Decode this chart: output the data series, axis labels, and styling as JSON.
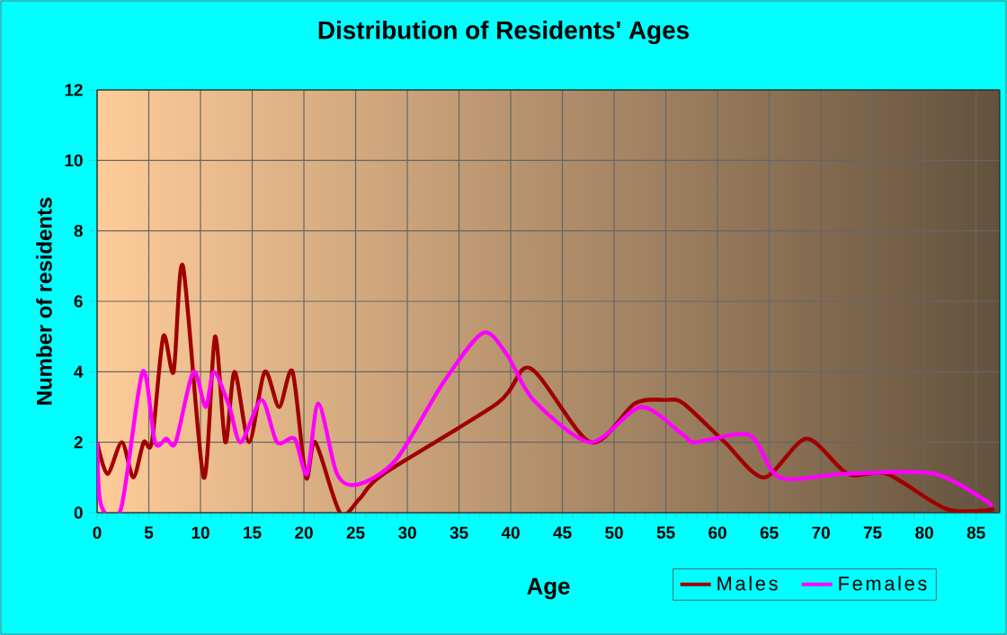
{
  "chart_data": {
    "type": "line",
    "title": "Distribution of Residents' Ages",
    "xlabel": "Age",
    "ylabel": "Number of residents",
    "xlim": [
      0,
      87.3
    ],
    "ylim": [
      0,
      12
    ],
    "xticks": [
      0,
      5,
      10,
      15,
      20,
      25,
      30,
      35,
      40,
      45,
      50,
      55,
      60,
      65,
      70,
      75,
      80,
      85
    ],
    "yticks": [
      0,
      2,
      4,
      6,
      8,
      10,
      12
    ],
    "grid": true,
    "legend": "bottom right",
    "marker": "none",
    "line_style": "solid",
    "series": [
      {
        "name": "Males",
        "color": "#a00000",
        "x": [
          0,
          1,
          2.4,
          3.5,
          4.5,
          5.3,
          6.4,
          7.4,
          8.3,
          10.3,
          11.4,
          12.4,
          13.3,
          14.7,
          16.2,
          17.6,
          18.9,
          20.2,
          21.1,
          23.5,
          25.4,
          27.7,
          38.7,
          41.9,
          47.7,
          52,
          55,
          56.7,
          60.7,
          64.5,
          68.6,
          72.6,
          76.4,
          82.2,
          86.8
        ],
        "values": [
          2,
          1.1,
          2,
          1,
          2,
          2,
          5,
          4,
          7,
          1,
          5,
          2,
          4,
          2,
          4,
          3,
          4,
          1,
          2,
          0,
          0.4,
          1.1,
          3.1,
          4.1,
          2,
          3.1,
          3.2,
          3.1,
          2,
          1,
          2.1,
          1.1,
          1.1,
          0.1,
          0.1
        ]
      },
      {
        "name": "Females",
        "color": "#ff00ff",
        "x": [
          0,
          0.4,
          2.3,
          4.4,
          5.6,
          6.7,
          7.6,
          9.3,
          10.5,
          11.3,
          12.8,
          13.9,
          15.9,
          17.4,
          19.1,
          20.3,
          21.4,
          23.2,
          25.2,
          28.9,
          33.5,
          37.3,
          39.6,
          42.2,
          47.7,
          52.6,
          56.7,
          57.9,
          63.1,
          66,
          72.3,
          81,
          86.6
        ],
        "values": [
          2,
          0.2,
          0.1,
          4,
          2,
          2.1,
          2,
          4,
          3,
          4,
          3,
          2,
          3.2,
          2,
          2.1,
          1.1,
          3.1,
          1.1,
          0.8,
          1.5,
          3.7,
          5.1,
          4.5,
          3.2,
          2,
          3,
          2.2,
          2,
          2.2,
          1,
          1.1,
          1.1,
          0.2
        ]
      }
    ]
  }
}
